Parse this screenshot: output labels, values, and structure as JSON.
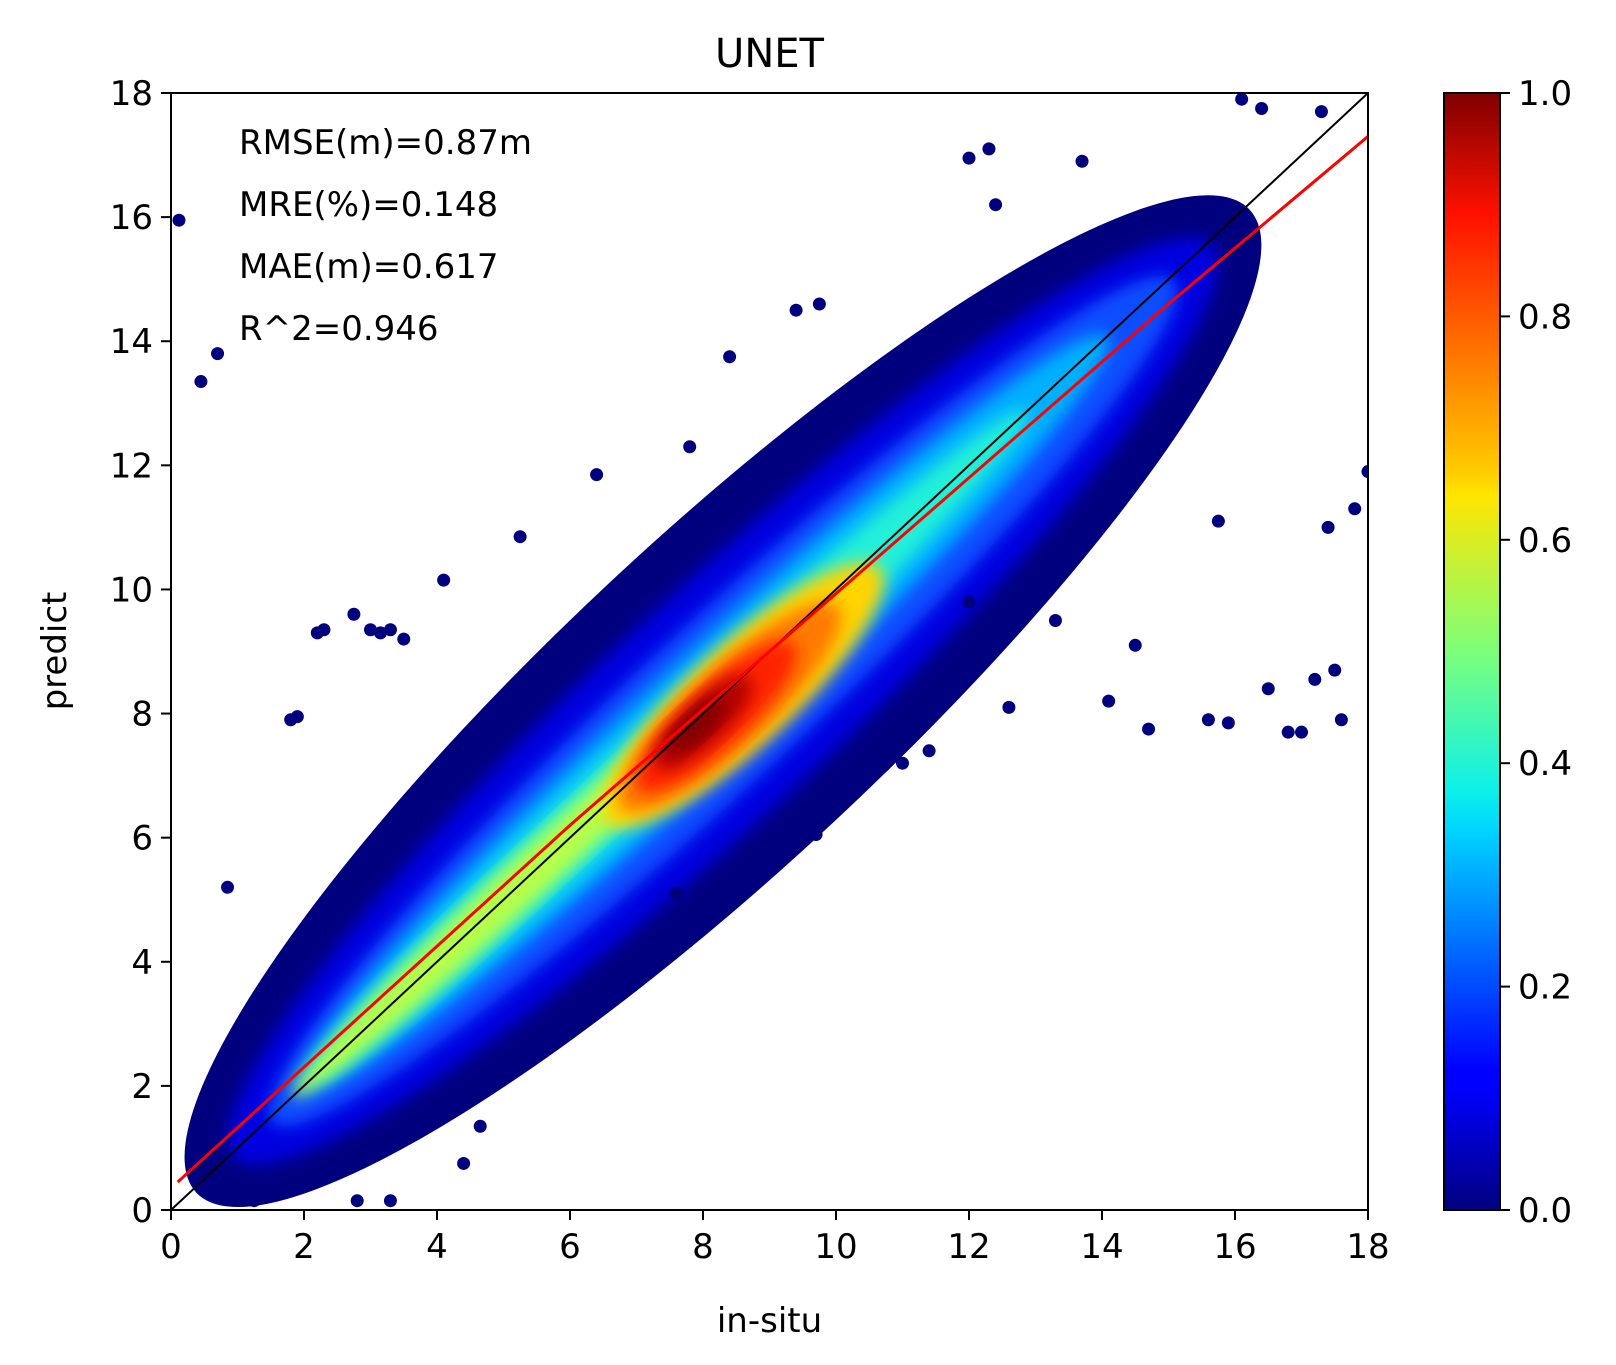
{
  "chart_data": {
    "type": "scatter",
    "title": "UNET",
    "xlabel": "in-situ",
    "ylabel": "predict",
    "xlim": [
      0,
      18
    ],
    "ylim": [
      0,
      18
    ],
    "xticks": [
      0,
      2,
      4,
      6,
      8,
      10,
      12,
      14,
      16,
      18
    ],
    "yticks": [
      0,
      2,
      4,
      6,
      8,
      10,
      12,
      14,
      16,
      18
    ],
    "grid": false,
    "colormap": "jet",
    "colorbar": {
      "range": [
        0.0,
        1.0
      ],
      "ticks": [
        "0.0",
        "0.2",
        "0.4",
        "0.6",
        "0.8",
        "1.0"
      ]
    },
    "annotations": [
      "RMSE(m)=0.87m",
      "MRE(%)=0.148",
      "MAE(m)=0.617",
      "R^2=0.946"
    ],
    "reference_line": {
      "color": "#000000",
      "points": [
        [
          0,
          0
        ],
        [
          18,
          18
        ]
      ]
    },
    "fit_line": {
      "color": "#ff0000",
      "points": [
        [
          0.1,
          0.45
        ],
        [
          6,
          6.2
        ],
        [
          15,
          14.6
        ],
        [
          18,
          17.3
        ]
      ]
    },
    "density_peak": {
      "x": 8.0,
      "y": 7.9
    },
    "outliers": [
      {
        "x": 0.12,
        "y": 15.95
      },
      {
        "x": 0.45,
        "y": 13.35
      },
      {
        "x": 0.7,
        "y": 13.8
      },
      {
        "x": 0.85,
        "y": 5.2
      },
      {
        "x": 1.8,
        "y": 7.9
      },
      {
        "x": 1.9,
        "y": 7.95
      },
      {
        "x": 2.2,
        "y": 9.3
      },
      {
        "x": 2.3,
        "y": 9.35
      },
      {
        "x": 2.75,
        "y": 9.6
      },
      {
        "x": 3.0,
        "y": 9.35
      },
      {
        "x": 3.15,
        "y": 9.3
      },
      {
        "x": 3.3,
        "y": 9.35
      },
      {
        "x": 3.5,
        "y": 9.2
      },
      {
        "x": 4.1,
        "y": 10.15
      },
      {
        "x": 5.25,
        "y": 10.85
      },
      {
        "x": 6.4,
        "y": 11.85
      },
      {
        "x": 7.8,
        "y": 12.3
      },
      {
        "x": 8.4,
        "y": 13.75
      },
      {
        "x": 9.4,
        "y": 14.5
      },
      {
        "x": 9.75,
        "y": 14.6
      },
      {
        "x": 12.0,
        "y": 16.95
      },
      {
        "x": 12.3,
        "y": 17.1
      },
      {
        "x": 12.4,
        "y": 16.2
      },
      {
        "x": 13.7,
        "y": 16.9
      },
      {
        "x": 16.1,
        "y": 17.9
      },
      {
        "x": 16.4,
        "y": 17.75
      },
      {
        "x": 17.3,
        "y": 17.7
      },
      {
        "x": 7.6,
        "y": 5.1
      },
      {
        "x": 9.3,
        "y": 5.95
      },
      {
        "x": 9.7,
        "y": 6.05
      },
      {
        "x": 10.05,
        "y": 6.5
      },
      {
        "x": 11.4,
        "y": 7.4
      },
      {
        "x": 12.6,
        "y": 8.1
      },
      {
        "x": 14.1,
        "y": 8.2
      },
      {
        "x": 14.7,
        "y": 7.75
      },
      {
        "x": 15.6,
        "y": 7.9
      },
      {
        "x": 15.9,
        "y": 7.85
      },
      {
        "x": 16.5,
        "y": 8.4
      },
      {
        "x": 16.8,
        "y": 7.7
      },
      {
        "x": 17.0,
        "y": 7.7
      },
      {
        "x": 17.2,
        "y": 8.55
      },
      {
        "x": 17.5,
        "y": 8.7
      },
      {
        "x": 17.6,
        "y": 7.9
      },
      {
        "x": 17.4,
        "y": 11.0
      },
      {
        "x": 17.8,
        "y": 11.3
      },
      {
        "x": 18.0,
        "y": 11.9
      },
      {
        "x": 15.75,
        "y": 11.1
      },
      {
        "x": 13.3,
        "y": 9.5
      },
      {
        "x": 12.0,
        "y": 9.8
      },
      {
        "x": 14.5,
        "y": 9.1
      },
      {
        "x": 11.0,
        "y": 7.2
      },
      {
        "x": 3.3,
        "y": 0.15
      },
      {
        "x": 2.8,
        "y": 0.15
      },
      {
        "x": 4.4,
        "y": 0.75
      },
      {
        "x": 4.65,
        "y": 1.35
      },
      {
        "x": 6.35,
        "y": 3.3
      },
      {
        "x": 6.7,
        "y": 3.8
      },
      {
        "x": 1.25,
        "y": 0.15
      }
    ]
  }
}
